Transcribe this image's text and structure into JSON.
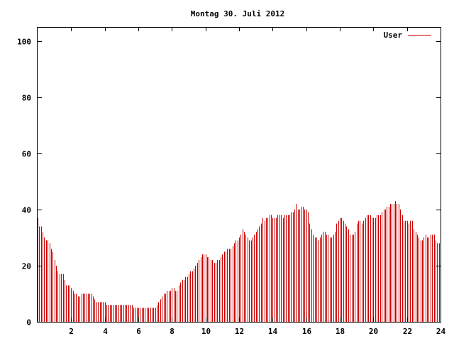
{
  "chart_data": {
    "type": "bar",
    "title": "Montag 30. Juli 2012",
    "xlabel": "",
    "ylabel": "",
    "xlim": [
      0,
      24
    ],
    "ylim": [
      0,
      105
    ],
    "xticks": [
      2,
      4,
      6,
      8,
      10,
      12,
      14,
      16,
      18,
      20,
      22,
      24
    ],
    "yticks": [
      0,
      20,
      40,
      60,
      80,
      100
    ],
    "grid": false,
    "legend_position": "top-right",
    "series": [
      {
        "name": "User",
        "color": "#cc0000",
        "x": [
          0.0,
          0.1,
          0.2,
          0.3,
          0.4,
          0.5,
          0.6,
          0.7,
          0.8,
          0.9,
          1.0,
          1.1,
          1.2,
          1.3,
          1.4,
          1.5,
          1.6,
          1.7,
          1.8,
          1.9,
          2.0,
          2.1,
          2.2,
          2.3,
          2.4,
          2.5,
          2.6,
          2.7,
          2.8,
          2.9,
          3.0,
          3.1,
          3.2,
          3.3,
          3.4,
          3.5,
          3.6,
          3.7,
          3.8,
          3.9,
          4.0,
          4.1,
          4.2,
          4.3,
          4.4,
          4.5,
          4.6,
          4.7,
          4.8,
          4.9,
          5.0,
          5.1,
          5.2,
          5.3,
          5.4,
          5.5,
          5.6,
          5.7,
          5.8,
          5.9,
          6.0,
          6.1,
          6.2,
          6.3,
          6.4,
          6.5,
          6.6,
          6.7,
          6.8,
          6.9,
          7.0,
          7.1,
          7.2,
          7.3,
          7.4,
          7.5,
          7.6,
          7.7,
          7.8,
          7.9,
          8.0,
          8.1,
          8.2,
          8.3,
          8.4,
          8.5,
          8.6,
          8.7,
          8.8,
          8.9,
          9.0,
          9.1,
          9.2,
          9.3,
          9.4,
          9.5,
          9.6,
          9.7,
          9.8,
          9.9,
          10.0,
          10.1,
          10.2,
          10.3,
          10.4,
          10.5,
          10.6,
          10.7,
          10.8,
          10.9,
          11.0,
          11.1,
          11.2,
          11.3,
          11.4,
          11.5,
          11.6,
          11.7,
          11.8,
          11.9,
          12.0,
          12.1,
          12.2,
          12.3,
          12.4,
          12.5,
          12.6,
          12.7,
          12.8,
          12.9,
          13.0,
          13.1,
          13.2,
          13.3,
          13.4,
          13.5,
          13.6,
          13.7,
          13.8,
          13.9,
          14.0,
          14.1,
          14.2,
          14.3,
          14.4,
          14.5,
          14.6,
          14.7,
          14.8,
          14.9,
          15.0,
          15.1,
          15.2,
          15.3,
          15.4,
          15.5,
          15.6,
          15.7,
          15.8,
          15.9,
          16.0,
          16.1,
          16.2,
          16.3,
          16.4,
          16.5,
          16.6,
          16.7,
          16.8,
          16.9,
          17.0,
          17.1,
          17.2,
          17.3,
          17.4,
          17.5,
          17.6,
          17.7,
          17.8,
          17.9,
          18.0,
          18.1,
          18.2,
          18.3,
          18.4,
          18.5,
          18.6,
          18.7,
          18.8,
          18.9,
          19.0,
          19.1,
          19.2,
          19.3,
          19.4,
          19.5,
          19.6,
          19.7,
          19.8,
          19.9,
          20.0,
          20.1,
          20.2,
          20.3,
          20.4,
          20.5,
          20.6,
          20.7,
          20.8,
          20.9,
          21.0,
          21.1,
          21.2,
          21.3,
          21.4,
          21.5,
          21.6,
          21.7,
          21.8,
          21.9,
          22.0,
          22.1,
          22.2,
          22.3,
          22.4,
          22.5,
          22.6,
          22.7,
          22.8,
          22.9,
          23.0,
          23.1,
          23.2,
          23.3,
          23.4,
          23.5,
          23.6,
          23.7,
          23.8,
          23.9
        ],
        "values": [
          37,
          34,
          34,
          32,
          30,
          29,
          29,
          28,
          26,
          25,
          22,
          20,
          18,
          17,
          17,
          17,
          15,
          13,
          13,
          13,
          12,
          11,
          10,
          10,
          9,
          9,
          10,
          10,
          10,
          10,
          10,
          10,
          10,
          9,
          8,
          7,
          7,
          7,
          7,
          7,
          7,
          6,
          6,
          6,
          6,
          6,
          6,
          6,
          6,
          6,
          6,
          6,
          6,
          6,
          6,
          6,
          6,
          5,
          5,
          5,
          5,
          5,
          5,
          5,
          5,
          5,
          5,
          5,
          5,
          5,
          5,
          6,
          7,
          8,
          9,
          10,
          10,
          11,
          11,
          11,
          12,
          12,
          11,
          11,
          13,
          14,
          15,
          15,
          16,
          16,
          17,
          18,
          18,
          19,
          20,
          21,
          22,
          23,
          24,
          24,
          24,
          23,
          23,
          22,
          22,
          21,
          21,
          22,
          22,
          23,
          24,
          25,
          25,
          26,
          26,
          26,
          27,
          28,
          29,
          29,
          30,
          31,
          33,
          32,
          31,
          30,
          29,
          29,
          30,
          31,
          32,
          33,
          34,
          35,
          37,
          36,
          37,
          37,
          38,
          38,
          37,
          37,
          37,
          38,
          38,
          38,
          37,
          38,
          38,
          38,
          38,
          39,
          39,
          40,
          42,
          40,
          40,
          41,
          41,
          40,
          40,
          39,
          35,
          33,
          31,
          30,
          30,
          29,
          30,
          31,
          32,
          32,
          31,
          31,
          30,
          30,
          31,
          32,
          35,
          36,
          37,
          37,
          36,
          35,
          34,
          33,
          31,
          31,
          31,
          32,
          35,
          36,
          36,
          35,
          36,
          37,
          38,
          38,
          38,
          37,
          37,
          37,
          38,
          38,
          38,
          39,
          40,
          40,
          41,
          41,
          42,
          42,
          42,
          43,
          42,
          42,
          40,
          38,
          36,
          36,
          36,
          35,
          36,
          36,
          33,
          32,
          31,
          30,
          29,
          29,
          30,
          31,
          30,
          30,
          31,
          31,
          31,
          29,
          28,
          28
        ]
      }
    ]
  }
}
